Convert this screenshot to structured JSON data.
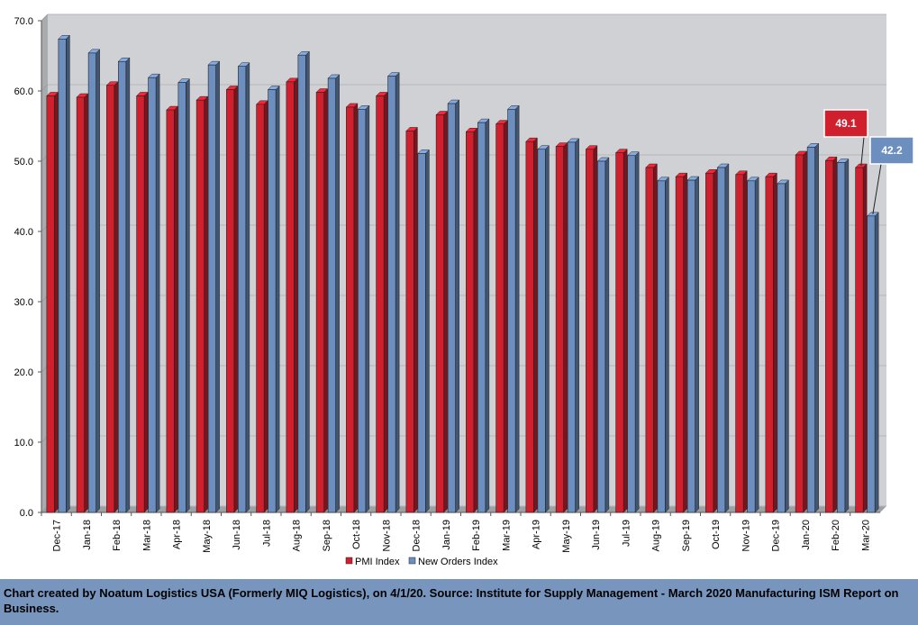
{
  "chart_data": {
    "type": "bar",
    "categories": [
      "Dec-17",
      "Jan-18",
      "Feb-18",
      "Mar-18",
      "Apr-18",
      "May-18",
      "Jun-18",
      "Jul-18",
      "Aug-18",
      "Sep-18",
      "Oct-18",
      "Nov-18",
      "Dec-18",
      "Jan-19",
      "Feb-19",
      "Mar-19",
      "Apr-19",
      "May-19",
      "Jun-19",
      "Jul-19",
      "Aug-19",
      "Sep-19",
      "Oct-19",
      "Nov-19",
      "Dec-19",
      "Jan-20",
      "Feb-20",
      "Mar-20"
    ],
    "series": [
      {
        "name": "PMI Index",
        "color": "#d0202e",
        "values": [
          59.3,
          59.1,
          60.8,
          59.3,
          57.3,
          58.7,
          60.2,
          58.1,
          61.3,
          59.8,
          57.7,
          59.3,
          54.3,
          56.6,
          54.2,
          55.3,
          52.8,
          52.1,
          51.7,
          51.2,
          49.1,
          47.8,
          48.3,
          48.1,
          47.8,
          50.9,
          50.1,
          49.1
        ]
      },
      {
        "name": "New Orders Index",
        "color": "#6d8fbf",
        "values": [
          67.4,
          65.4,
          64.2,
          61.9,
          61.2,
          63.7,
          63.5,
          60.2,
          65.1,
          61.8,
          57.4,
          62.1,
          51.1,
          58.2,
          55.5,
          57.4,
          51.7,
          52.7,
          50.0,
          50.8,
          47.2,
          47.3,
          49.1,
          47.2,
          46.8,
          52.0,
          49.8,
          42.2
        ]
      }
    ],
    "ylim": [
      0,
      70
    ],
    "y_ticks": [
      "0.0",
      "10.0",
      "20.0",
      "30.0",
      "40.0",
      "50.0",
      "60.0",
      "70.0"
    ],
    "grid": true,
    "legend_position": "bottom",
    "annotations": [
      {
        "series": "PMI Index",
        "category": "Mar-20",
        "label": "49.1",
        "color": "#d0202e"
      },
      {
        "series": "New Orders Index",
        "category": "Mar-20",
        "label": "42.2",
        "color": "#6d8fbf"
      }
    ],
    "footer": "Chart created by Noatum Logistics USA (Formerly MIQ Logistics), on 4/1/20. Source: Institute for Supply Management - March 2020 Manufacturing ISM Report on Business."
  }
}
